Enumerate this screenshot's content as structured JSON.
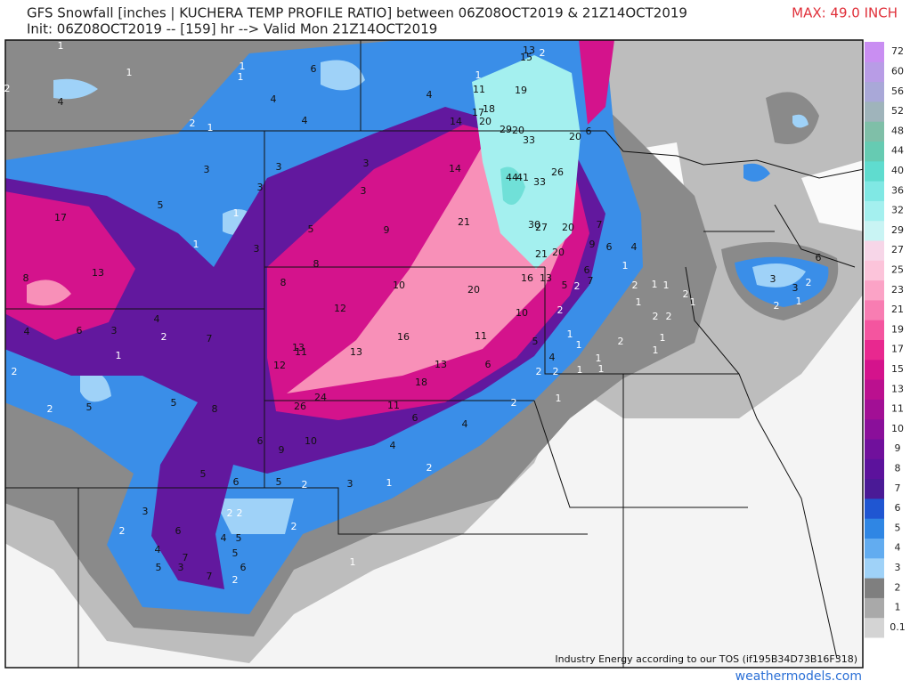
{
  "header": {
    "title": "GFS Snowfall [inches | KUCHERA TEMP PROFILE RATIO] between 06Z08OCT2019 & 21Z14OCT2019",
    "subtitle": "Init: 06Z08OCT2019 -- [159] hr --> Valid Mon 21Z14OCT2019",
    "max_label": "MAX: 49.0 INCH"
  },
  "colorbar": {
    "ticks": [
      0.1,
      1,
      2,
      3,
      4,
      5,
      6,
      7,
      8,
      9,
      10,
      11,
      13,
      15,
      17,
      19,
      21,
      23,
      25,
      27,
      29,
      32,
      36,
      40,
      44,
      48,
      52,
      56,
      60,
      72
    ],
    "colors": [
      "#d4d4d4",
      "#a9a9a9",
      "#7f7f7f",
      "#9fd2f8",
      "#62acf0",
      "#2f86e4",
      "#1f56d2",
      "#4a1a96",
      "#5c129c",
      "#70109c",
      "#8a0f9a",
      "#a20f95",
      "#bb108f",
      "#d4138c",
      "#e8288f",
      "#f4559f",
      "#f87db2",
      "#fba3c6",
      "#fcc4da",
      "#f7d6e8",
      "#c9f4f4",
      "#a4f0ef",
      "#80e8e4",
      "#5fdccf",
      "#66cbb2",
      "#7fbfa8",
      "#9fb4bb",
      "#a9a8d8",
      "#b89ce6",
      "#c98ef2"
    ]
  },
  "map_labels": [
    1,
    1,
    1,
    1,
    6,
    2,
    4,
    4,
    4,
    2,
    1,
    4,
    1,
    11,
    18,
    17,
    14,
    20,
    13,
    15,
    2,
    19,
    29,
    20,
    33,
    20,
    6,
    3,
    3,
    3,
    3,
    3,
    14,
    26,
    44,
    41,
    33,
    17,
    5,
    1,
    5,
    9,
    21,
    30,
    27,
    20,
    7,
    9,
    6,
    4,
    1,
    3,
    21,
    20,
    13,
    8,
    8,
    8,
    10,
    20,
    16,
    13,
    12,
    10,
    16,
    11,
    5,
    4,
    6,
    3,
    4,
    2,
    7,
    1,
    13,
    11,
    13,
    12,
    13,
    6,
    2,
    18,
    24,
    26,
    11,
    5,
    5,
    8,
    2,
    6,
    4,
    6,
    10,
    9,
    4,
    5,
    6,
    5,
    2,
    3,
    1,
    2,
    3,
    2,
    2,
    6,
    2,
    4,
    5,
    2,
    4,
    5,
    7,
    5,
    3,
    6,
    7,
    2,
    1,
    2,
    2,
    1,
    4,
    2,
    1,
    1,
    1,
    1,
    1,
    2,
    2,
    1,
    1,
    2,
    2,
    1,
    1,
    2,
    1,
    3,
    3,
    2,
    2,
    1,
    6,
    5,
    2,
    7,
    6,
    2,
    1,
    1
  ],
  "footer": {
    "notice": "Industry Energy according to our TOS (if195B34D73B16F318)",
    "site": "weathermodels.com"
  }
}
